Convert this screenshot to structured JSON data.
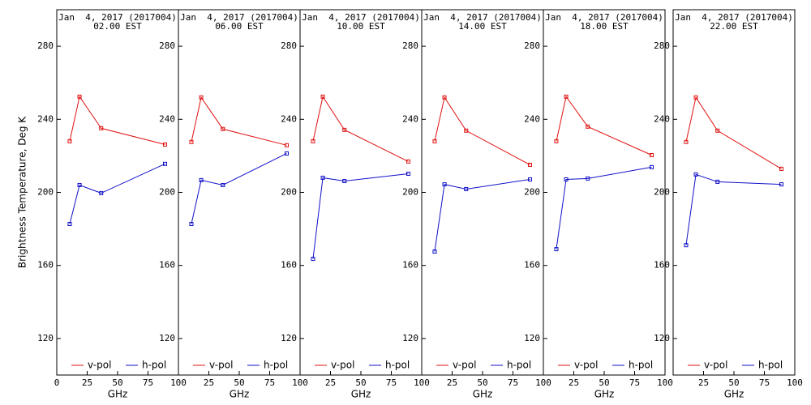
{
  "chart_data": [
    {
      "type": "line",
      "title": "Jan  4, 2017 (2017004)",
      "subtitle": "02.00 EST",
      "xlabel": "GHz",
      "ylabel": "Brightness Temperature, Deg K",
      "x": [
        10.65,
        18.7,
        36.5,
        89
      ],
      "xlim": [
        0,
        100
      ],
      "xticks": [
        0,
        25,
        50,
        75,
        100
      ],
      "ylim": [
        100,
        300
      ],
      "yticks": [
        120,
        160,
        200,
        240,
        280
      ],
      "series": [
        {
          "name": "v-pol",
          "color": "#e01010",
          "values": [
            228,
            252.4,
            235.1,
            226.2
          ]
        },
        {
          "name": "h-pol",
          "color": "#1010c8",
          "values": [
            182.7,
            204,
            199.6,
            215.6
          ]
        }
      ]
    },
    {
      "type": "line",
      "title": "Jan  4, 2017 (2017004)",
      "subtitle": "06.00 EST",
      "xlabel": "GHz",
      "x": [
        10.65,
        18.7,
        36.5,
        89
      ],
      "xlim": [
        0,
        100
      ],
      "xticks": [
        25,
        50,
        75,
        100
      ],
      "ylim": [
        100,
        300
      ],
      "yticks": [
        120,
        160,
        200,
        240,
        280
      ],
      "series": [
        {
          "name": "v-pol",
          "color": "#e01010",
          "values": [
            227.6,
            252,
            234.7,
            225.8
          ]
        },
        {
          "name": "h-pol",
          "color": "#1010c8",
          "values": [
            182.7,
            206.7,
            204,
            221.3
          ]
        }
      ]
    },
    {
      "type": "line",
      "title": "Jan  4, 2017 (2017004)",
      "subtitle": "10.00 EST",
      "xlabel": "GHz",
      "x": [
        10.65,
        18.7,
        36.5,
        89
      ],
      "xlim": [
        0,
        100
      ],
      "xticks": [
        25,
        50,
        75,
        100
      ],
      "ylim": [
        100,
        300
      ],
      "yticks": [
        120,
        160,
        200,
        240,
        280
      ],
      "series": [
        {
          "name": "v-pol",
          "color": "#e01010",
          "values": [
            228,
            252.4,
            234.2,
            216.9
          ]
        },
        {
          "name": "h-pol",
          "color": "#1010c8",
          "values": [
            163.6,
            208,
            206.2,
            210.2
          ]
        }
      ]
    },
    {
      "type": "line",
      "title": "Jan  4, 2017 (2017004)",
      "subtitle": "14.00 EST",
      "xlabel": "GHz",
      "x": [
        10.65,
        18.7,
        36.5,
        89
      ],
      "xlim": [
        0,
        100
      ],
      "xticks": [
        25,
        50,
        75,
        100
      ],
      "ylim": [
        100,
        300
      ],
      "yticks": [
        120,
        160,
        200,
        240,
        280
      ],
      "series": [
        {
          "name": "v-pol",
          "color": "#e01010",
          "values": [
            228,
            252,
            233.8,
            215.1
          ]
        },
        {
          "name": "h-pol",
          "color": "#1010c8",
          "values": [
            167.6,
            204.4,
            201.8,
            207.1
          ]
        }
      ]
    },
    {
      "type": "line",
      "title": "Jan  4, 2017 (2017004)",
      "subtitle": "18.00 EST",
      "xlabel": "GHz",
      "x": [
        10.65,
        18.7,
        36.5,
        89
      ],
      "xlim": [
        0,
        100
      ],
      "xticks": [
        25,
        50,
        75,
        100
      ],
      "ylim": [
        100,
        300
      ],
      "yticks": [
        120,
        160,
        200,
        240,
        280
      ],
      "series": [
        {
          "name": "v-pol",
          "color": "#e01010",
          "values": [
            228,
            252.4,
            236,
            220.4
          ]
        },
        {
          "name": "h-pol",
          "color": "#1010c8",
          "values": [
            168.9,
            207.1,
            207.6,
            213.8
          ]
        }
      ]
    },
    {
      "type": "line",
      "title": "Jan  4, 2017 (2017004)",
      "subtitle": "22.00 EST",
      "xlabel": "GHz",
      "x": [
        10.65,
        18.7,
        36.5,
        89
      ],
      "xlim": [
        0,
        100
      ],
      "xticks": [
        25,
        50,
        75,
        100
      ],
      "ylim": [
        100,
        300
      ],
      "yticks": [
        120,
        160,
        200,
        240,
        280
      ],
      "series": [
        {
          "name": "v-pol",
          "color": "#e01010",
          "values": [
            227.6,
            252,
            233.8,
            212.9
          ]
        },
        {
          "name": "h-pol",
          "color": "#1010c8",
          "values": [
            171.1,
            209.8,
            205.8,
            204.4
          ]
        }
      ]
    }
  ]
}
